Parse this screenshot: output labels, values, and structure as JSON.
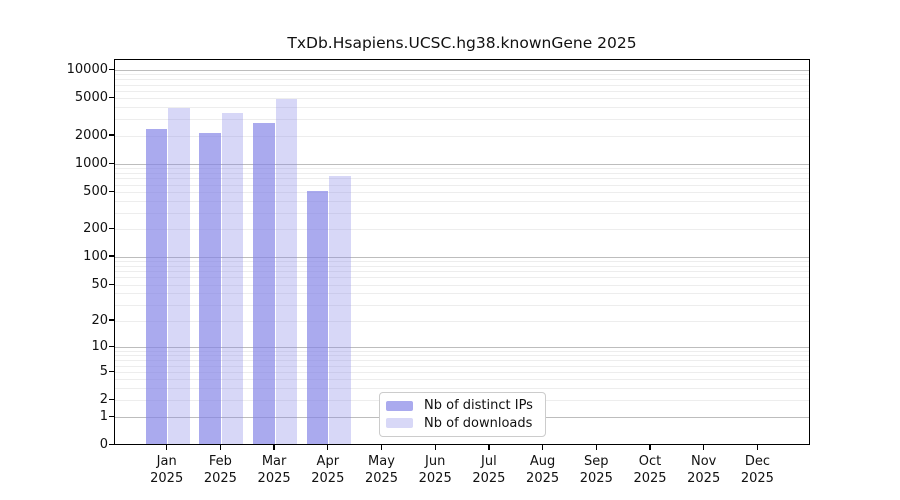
{
  "chart_data": {
    "type": "bar",
    "title": "TxDb.Hsapiens.UCSC.hg38.knownGene 2025",
    "months": [
      "Jan",
      "Feb",
      "Mar",
      "Apr",
      "May",
      "Jun",
      "Jul",
      "Aug",
      "Sep",
      "Oct",
      "Nov",
      "Dec"
    ],
    "year": "2025",
    "series": [
      {
        "name": "Nb of distinct IPs",
        "color": "#aaaaee",
        "values": [
          2350,
          2160,
          2780,
          525,
          null,
          null,
          null,
          null,
          null,
          null,
          null,
          null
        ]
      },
      {
        "name": "Nb of downloads",
        "color": "#d8d8f7",
        "values": [
          4000,
          3480,
          4950,
          745,
          null,
          null,
          null,
          null,
          null,
          null,
          null,
          null
        ]
      }
    ],
    "y_ticks": [
      0,
      1,
      2,
      5,
      10,
      20,
      50,
      100,
      200,
      500,
      1000,
      2000,
      5000,
      10000
    ],
    "y_scale": "log-like",
    "grid": true,
    "legend_position": "inside-bottom-center",
    "axis_color": "#000000",
    "major_grid_color": "#bdbdbd",
    "minor_grid_color": "#ededed"
  }
}
